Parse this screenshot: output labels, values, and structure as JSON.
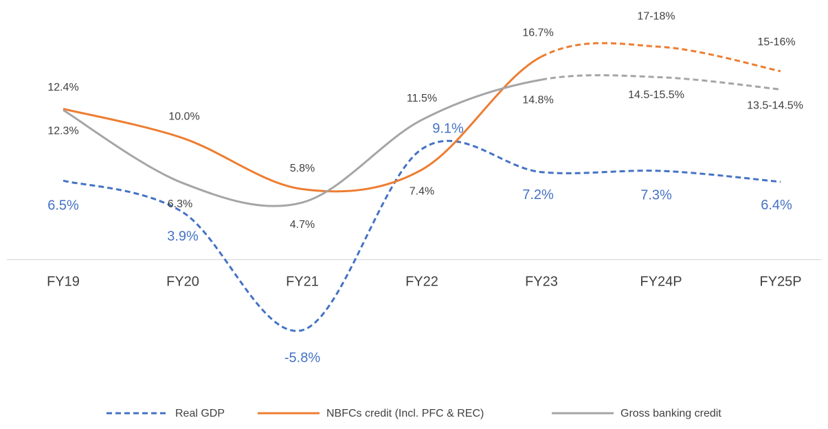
{
  "chart_data": {
    "type": "line",
    "categories": [
      "FY19",
      "FY20",
      "FY21",
      "FY22",
      "FY23",
      "FY24P",
      "FY25P"
    ],
    "ylim": [
      -8,
      20
    ],
    "projection_start": "FY23",
    "series": [
      {
        "name": "Real GDP",
        "color": "#4472c4",
        "line_style": "dashed",
        "values": [
          6.5,
          3.9,
          -5.8,
          9.1,
          7.2,
          7.3,
          6.4
        ],
        "value_labels": [
          "6.5%",
          "3.9%",
          "-5.8%",
          "9.1%",
          "7.2%",
          "7.3%",
          "6.4%"
        ]
      },
      {
        "name": "NBFCs credit (Incl. PFC & REC)",
        "color": "#ed7d31",
        "line_style": "solid",
        "values": [
          12.4,
          10.0,
          5.8,
          7.4,
          16.7,
          17.5,
          15.5
        ],
        "value_labels": [
          "12.4%",
          "10.0%",
          "5.8%",
          "7.4%",
          "16.7%",
          "17-18%",
          "15-16%"
        ]
      },
      {
        "name": "Gross banking credit",
        "color": "#a5a5a5",
        "line_style": "solid",
        "values": [
          12.3,
          6.3,
          4.7,
          11.5,
          14.8,
          15.0,
          14.0
        ],
        "value_labels": [
          "12.3%",
          "6.3%",
          "4.7%",
          "11.5%",
          "14.8%",
          "14.5-15.5%",
          "13.5-14.5%"
        ]
      }
    ]
  }
}
